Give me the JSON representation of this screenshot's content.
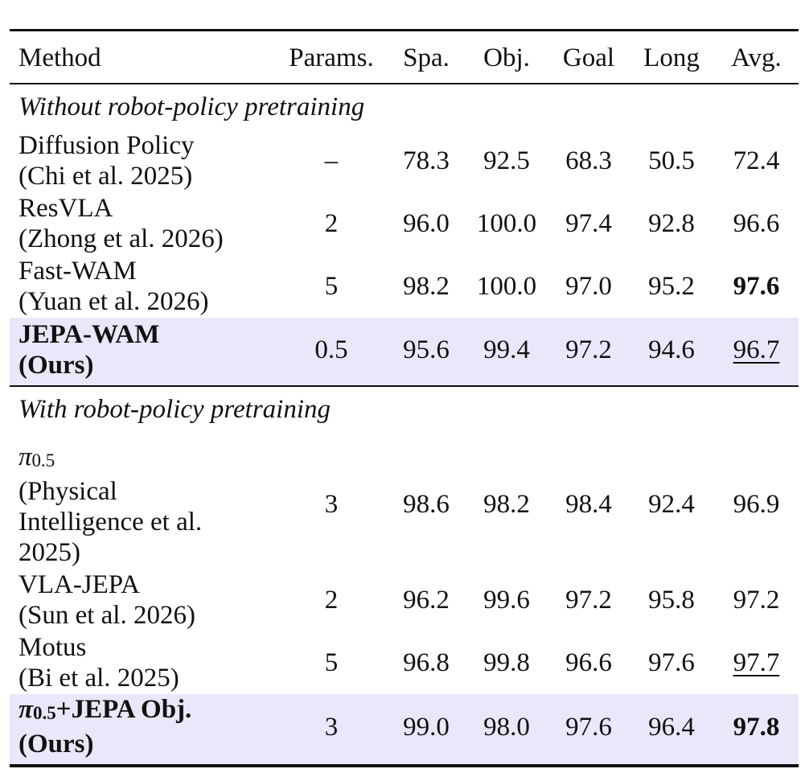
{
  "table": {
    "headers": [
      "Method",
      "Params.",
      "Spa.",
      "Obj.",
      "Goal",
      "Long",
      "Avg."
    ],
    "sections": [
      {
        "title": "Without robot-policy pretraining",
        "rows": [
          {
            "method": [
              "Diffusion Policy",
              "(Chi et al. 2025)"
            ],
            "params": "–",
            "spa": "78.3",
            "obj": "92.5",
            "goal": "68.3",
            "long": "50.5",
            "avg": "72.4"
          },
          {
            "method": [
              "ResVLA",
              "(Zhong et al. 2026)"
            ],
            "params": "2",
            "spa": "96.0",
            "obj": "100.0",
            "goal": "97.4",
            "long": "92.8",
            "avg": "96.6"
          },
          {
            "method": [
              "Fast-WAM",
              "(Yuan et al. 2026)"
            ],
            "params": "5",
            "spa": "98.2",
            "obj": "100.0",
            "goal": "97.0",
            "long": "95.2",
            "avg": "97.6",
            "avg_style": "bold"
          },
          {
            "method": [
              "JEPA-WAM",
              "(Ours)"
            ],
            "params": "0.5",
            "spa": "95.6",
            "obj": "99.4",
            "goal": "97.2",
            "long": "94.6",
            "avg": "96.7",
            "avg_style": "underline",
            "highlight": true
          }
        ]
      },
      {
        "title": "With robot-policy pretraining",
        "rows": [
          {
            "method_symbol": "π",
            "method_subscript": "0.5",
            "method": [
              "(Physical",
              "Intelligence et al.",
              "2025)"
            ],
            "params": "3",
            "spa": "98.6",
            "obj": "98.2",
            "goal": "98.4",
            "long": "92.4",
            "avg": "96.9"
          },
          {
            "method": [
              "VLA-JEPA",
              "(Sun et al. 2026)"
            ],
            "params": "2",
            "spa": "96.2",
            "obj": "99.6",
            "goal": "97.2",
            "long": "95.8",
            "avg": "97.2"
          },
          {
            "method": [
              "Motus",
              "(Bi et al. 2025)"
            ],
            "params": "5",
            "spa": "96.8",
            "obj": "99.8",
            "goal": "96.6",
            "long": "97.6",
            "avg": "97.7",
            "avg_style": "underline"
          },
          {
            "method_symbol": "π",
            "method_subscript": "0.5",
            "method_suffix": "+JEPA Obj.",
            "method": [
              "(Ours)"
            ],
            "params": "3",
            "spa": "99.0",
            "obj": "98.0",
            "goal": "97.6",
            "long": "96.4",
            "avg": "97.8",
            "avg_style": "bold",
            "highlight": true
          }
        ]
      }
    ]
  }
}
